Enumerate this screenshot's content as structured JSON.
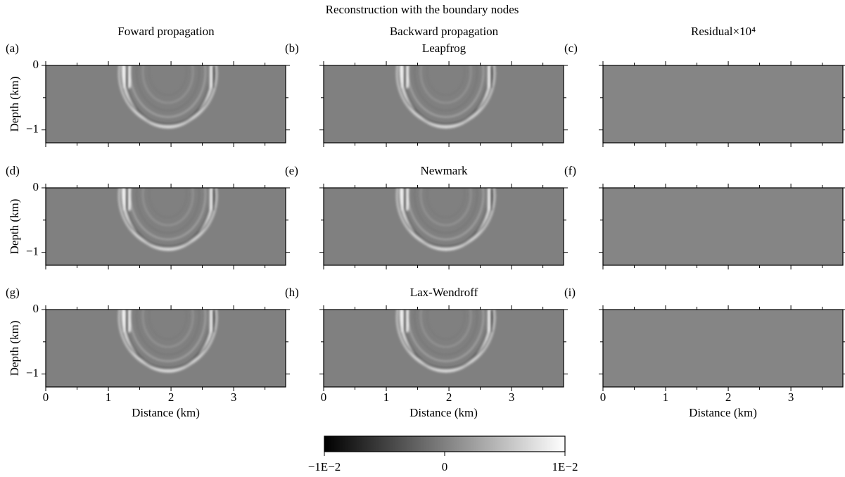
{
  "title": "Reconstruction with the boundary nodes",
  "columns": [
    "Foward propagation",
    "Backward propagation",
    "Residual×10⁴"
  ],
  "methods": [
    "Leapfrog",
    "Newmark",
    "Lax-Wendroff"
  ],
  "panels": [
    "(a)",
    "(b)",
    "(c)",
    "(d)",
    "(e)",
    "(f)",
    "(g)",
    "(h)",
    "(i)"
  ],
  "axes": {
    "xlabel": "Distance (km)",
    "ylabel": "Depth (km)",
    "xlim": [
      0,
      3.83
    ],
    "ylim": [
      -1.2,
      0
    ],
    "xticks": [
      0,
      1,
      2,
      3
    ],
    "xminorticks": [
      0.5,
      1.5,
      2.5,
      3.5
    ],
    "yticks": [
      0,
      {
        "value": -1,
        "label": "−1"
      }
    ],
    "yminorticks": [
      -0.5
    ]
  },
  "colorbar": {
    "lim": [
      -0.01,
      0.01
    ],
    "ticks": [
      {
        "value": -0.01,
        "label": "−1E−2"
      },
      0,
      {
        "value": 0.01,
        "label": "1E−2"
      }
    ]
  }
}
